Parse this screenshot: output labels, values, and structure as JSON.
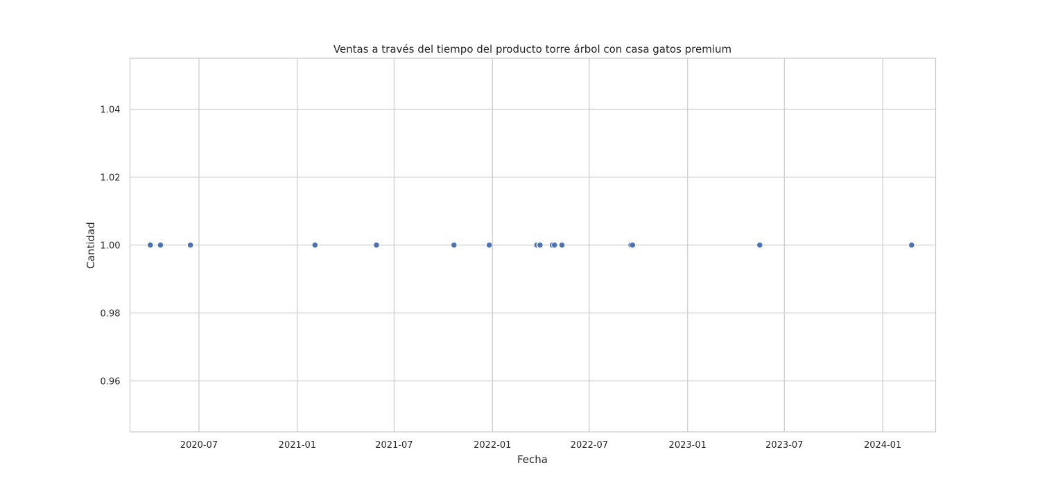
{
  "chart_data": {
    "type": "scatter",
    "title": "Ventas a través del tiempo del producto torre árbol con casa gatos premium",
    "xlabel": "Fecha",
    "ylabel": "Cantidad",
    "x_type": "date",
    "xlim": [
      "2020-02-23",
      "2024-04-09"
    ],
    "ylim": [
      0.945,
      1.055
    ],
    "x_ticks": [
      "2020-07-01",
      "2021-01-01",
      "2021-07-01",
      "2022-01-01",
      "2022-07-01",
      "2023-01-01",
      "2023-07-01",
      "2024-01-01"
    ],
    "x_tick_labels": [
      "2020-07",
      "2021-01",
      "2021-07",
      "2022-01",
      "2022-07",
      "2023-01",
      "2023-07",
      "2024-01"
    ],
    "y_ticks": [
      0.96,
      0.98,
      1.0,
      1.02,
      1.04
    ],
    "y_tick_labels": [
      "0.96",
      "0.98",
      "1.00",
      "1.02",
      "1.04"
    ],
    "grid": true,
    "color": "#4c72b0",
    "series": [
      {
        "x": [
          "2020-04-01",
          "2020-04-20",
          "2020-06-15",
          "2021-02-03",
          "2021-05-29",
          "2021-10-21",
          "2021-12-26",
          "2022-03-25",
          "2022-03-30",
          "2022-03-31",
          "2022-04-23",
          "2022-04-27",
          "2022-05-11",
          "2022-09-17",
          "2022-09-20",
          "2023-05-16",
          "2024-02-24"
        ],
        "y": [
          1,
          1,
          1,
          1,
          1,
          1,
          1,
          1,
          1,
          1,
          1,
          1,
          1,
          1,
          1,
          1,
          1
        ]
      }
    ]
  }
}
